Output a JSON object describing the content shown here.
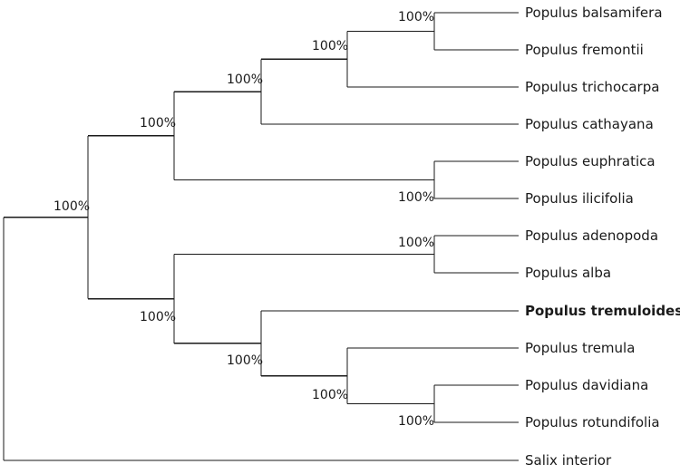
{
  "colors": {
    "branch": "#1a1a1a",
    "text": "#1a1a1a",
    "highlight_taxon": "#d9442a",
    "background": "#ffffff"
  },
  "tree": {
    "type": "phylogenetic-tree",
    "support_values": {
      "root": "",
      "ingroup": "100%",
      "clade_a": "100%",
      "balsam_clade": "100%",
      "bal_fre_tri": "100%",
      "bal_fre": "100%",
      "eup_ili": "100%",
      "clade_b": "100%",
      "ade_alb": "100%",
      "aspen_clade": "100%",
      "tre_dav_rot": "100%",
      "dav_rot": "100%"
    },
    "taxa": {
      "balsamifera": {
        "label": "Populus balsamifera",
        "style": "normal"
      },
      "fremontii": {
        "label": "Populus fremontii",
        "style": "normal"
      },
      "trichocarpa": {
        "label": "Populus trichocarpa",
        "style": "normal"
      },
      "cathayana": {
        "label": "Populus cathayana",
        "style": "normal"
      },
      "euphratica": {
        "label": "Populus euphratica",
        "style": "normal"
      },
      "ilicifolia": {
        "label": "Populus ilicifolia",
        "style": "normal"
      },
      "adenopoda": {
        "label": "Populus adenopoda",
        "style": "normal"
      },
      "alba": {
        "label": "Populus alba",
        "style": "normal"
      },
      "tremuloides": {
        "label": "Populus tremuloides",
        "style": "bold"
      },
      "tremula": {
        "label": "Populus tremula",
        "style": "highlight"
      },
      "davidiana": {
        "label": "Populus davidiana",
        "style": "normal"
      },
      "rotundifolia": {
        "label": "Populus rotundifolia",
        "style": "normal"
      },
      "salix": {
        "label": "Salix interior",
        "style": "normal"
      }
    }
  }
}
